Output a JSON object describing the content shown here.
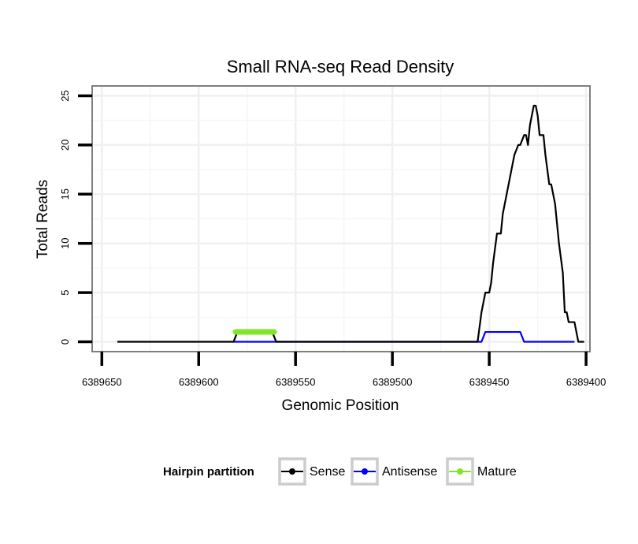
{
  "chart_data": {
    "type": "line",
    "title": "Small RNA-seq Read Density",
    "xlabel": "Genomic Position",
    "ylabel": "Total Reads",
    "xlim": [
      6389655,
      6389398
    ],
    "x_reversed": true,
    "ylim": [
      -1,
      26
    ],
    "x_ticks": [
      6389650,
      6389600,
      6389550,
      6389500,
      6389450,
      6389400
    ],
    "x_tick_labels": [
      "6389650",
      "6389600",
      "6389550",
      "6389500",
      "6389450",
      "6389400"
    ],
    "y_ticks": [
      0,
      5,
      10,
      15,
      20,
      25
    ],
    "y_tick_labels": [
      "0",
      "5",
      "10",
      "15",
      "20",
      "25"
    ],
    "grid": true,
    "legend": {
      "title": "Hairpin partition",
      "position": "bottom",
      "entries": [
        "Sense",
        "Antisense",
        "Mature"
      ]
    },
    "series": [
      {
        "name": "Sense",
        "color": "#000000",
        "x": [
          6389642,
          6389582,
          6389580,
          6389562,
          6389560,
          6389456,
          6389454,
          6389452,
          6389450,
          6389449,
          6389448,
          6389446,
          6389444,
          6389443,
          6389441,
          6389440,
          6389438,
          6389437,
          6389435,
          6389434,
          6389432,
          6389431,
          6389430,
          6389429,
          6389428,
          6389427,
          6389426,
          6389425,
          6389424,
          6389423,
          6389422,
          6389421,
          6389419,
          6389418,
          6389416,
          6389415,
          6389414,
          6389412,
          6389411,
          6389410,
          6389409,
          6389408,
          6389406,
          6389404,
          6389403,
          6389401
        ],
        "y": [
          0,
          0,
          1,
          1,
          0,
          0,
          3,
          5,
          5,
          6,
          8,
          11,
          11,
          13,
          15,
          16,
          18,
          19,
          20,
          20,
          21,
          21,
          20,
          22,
          23,
          24,
          24,
          23,
          21,
          21,
          21,
          19,
          16,
          16,
          14,
          12,
          10,
          7,
          3,
          3,
          2,
          2,
          2,
          0,
          0,
          0
        ]
      },
      {
        "name": "Antisense",
        "color": "#0000ff",
        "x": [
          6389582,
          6389560,
          6389556,
          6389454,
          6389452,
          6389434,
          6389432,
          6389406
        ],
        "y": [
          0,
          0,
          0,
          0,
          1,
          1,
          0,
          0
        ]
      },
      {
        "name": "Mature",
        "color": "#7fe62a",
        "x": [
          6389581,
          6389561
        ],
        "y": [
          1,
          1
        ]
      }
    ]
  }
}
